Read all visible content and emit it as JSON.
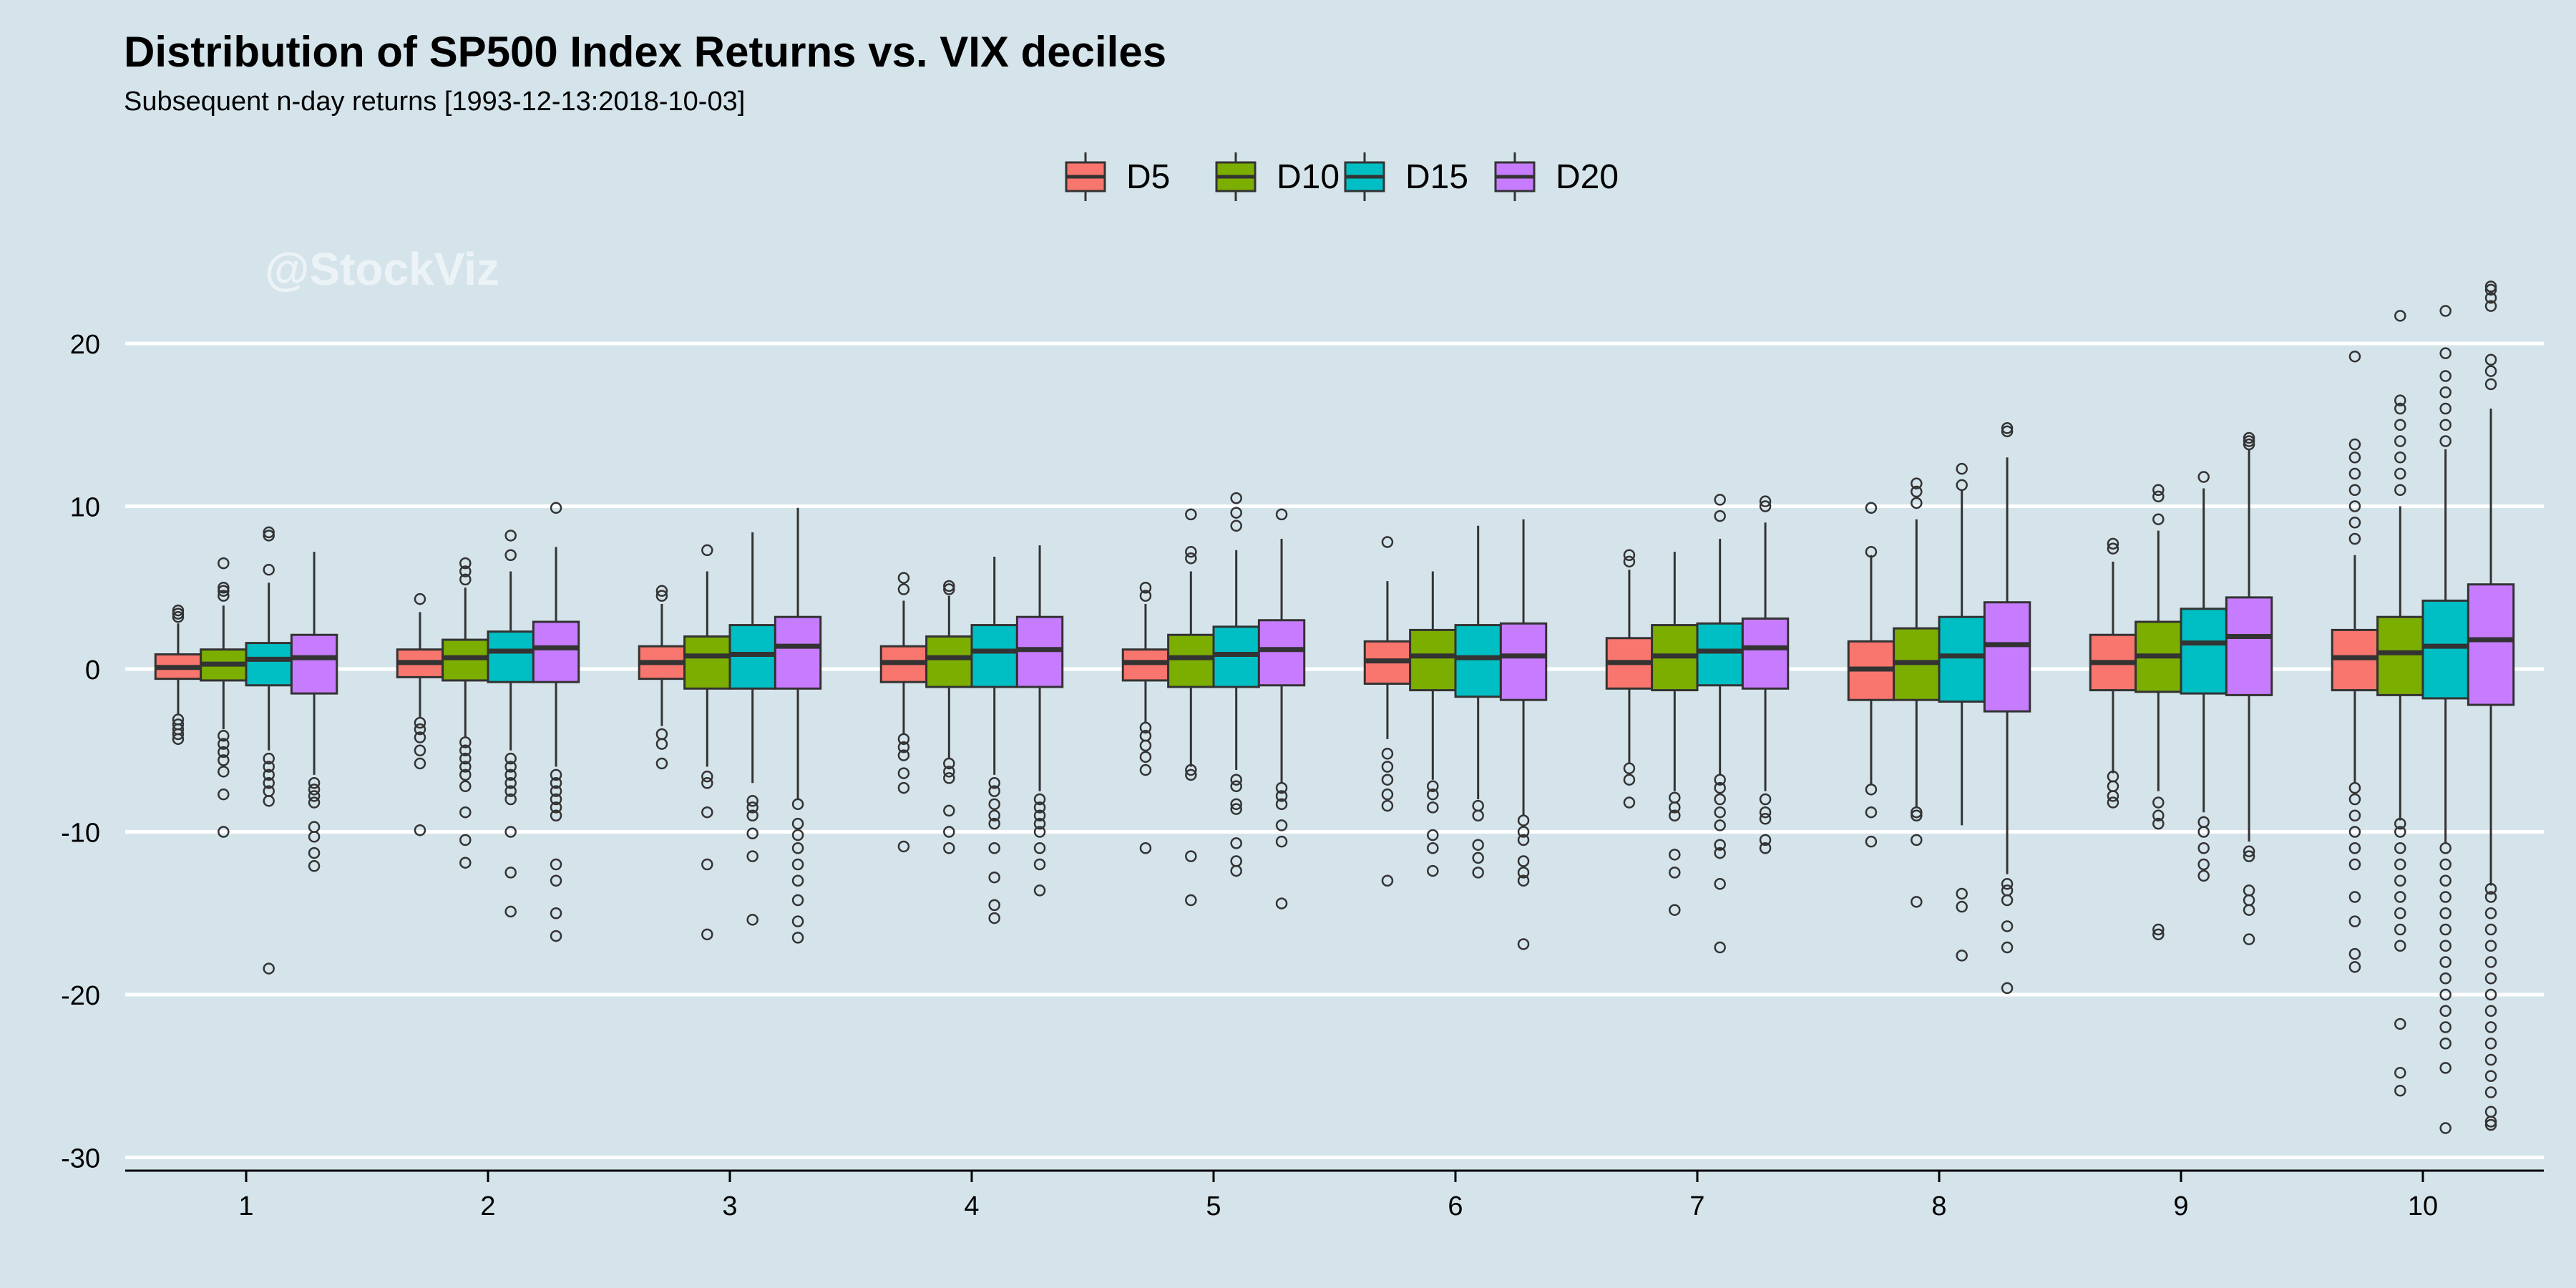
{
  "chart_data": {
    "type": "boxplot",
    "title": "Distribution of SP500 Index Returns vs. VIX deciles",
    "subtitle": "Subsequent n-day returns [1993-12-13:2018-10-03]",
    "watermark": "@StockViz",
    "xlabel": "",
    "ylabel": "",
    "ylim": [
      -30,
      24
    ],
    "yticks": [
      -30,
      -20,
      -10,
      0,
      10,
      20
    ],
    "categories": [
      "1",
      "2",
      "3",
      "4",
      "5",
      "6",
      "7",
      "8",
      "9",
      "10"
    ],
    "legend_position": "top",
    "background": "#d5e4eb",
    "series": [
      {
        "name": "D5",
        "color": "#f8766d",
        "boxes": [
          {
            "q1": -0.6,
            "median": 0.1,
            "q3": 0.9,
            "wlo": -2.8,
            "whi": 2.8,
            "outliers": [
              3.2,
              3.4,
              3.6,
              -3.1,
              -3.4,
              -3.7,
              -4.0,
              -4.3
            ]
          },
          {
            "q1": -0.5,
            "median": 0.4,
            "q3": 1.2,
            "wlo": -3.0,
            "whi": 3.5,
            "outliers": [
              4.3,
              -3.3,
              -3.7,
              -4.2,
              -5.0,
              -5.8,
              -9.9
            ]
          },
          {
            "q1": -0.6,
            "median": 0.4,
            "q3": 1.4,
            "wlo": -3.5,
            "whi": 4.0,
            "outliers": [
              4.5,
              4.8,
              -4.0,
              -4.6,
              -5.8
            ]
          },
          {
            "q1": -0.8,
            "median": 0.4,
            "q3": 1.4,
            "wlo": -4.0,
            "whi": 4.2,
            "outliers": [
              4.9,
              5.6,
              -4.3,
              -4.8,
              -5.3,
              -6.4,
              -7.3,
              -10.9
            ]
          },
          {
            "q1": -0.7,
            "median": 0.4,
            "q3": 1.2,
            "wlo": -3.3,
            "whi": 4.0,
            "outliers": [
              4.5,
              5.0,
              -3.6,
              -4.1,
              -4.7,
              -5.4,
              -6.2,
              -11.0
            ]
          },
          {
            "q1": -0.9,
            "median": 0.5,
            "q3": 1.7,
            "wlo": -4.3,
            "whi": 5.4,
            "outliers": [
              7.8,
              -5.2,
              -6.0,
              -6.8,
              -7.7,
              -8.4,
              -13.0
            ]
          },
          {
            "q1": -1.2,
            "median": 0.4,
            "q3": 1.9,
            "wlo": -5.8,
            "whi": 6.1,
            "outliers": [
              6.6,
              7.0,
              -6.1,
              -6.8,
              -8.2
            ]
          },
          {
            "q1": -1.9,
            "median": 0.0,
            "q3": 1.7,
            "wlo": -7.1,
            "whi": 7.0,
            "outliers": [
              7.2,
              9.9,
              -7.4,
              -8.8,
              -10.6
            ]
          },
          {
            "q1": -1.3,
            "median": 0.4,
            "q3": 2.1,
            "wlo": -6.4,
            "whi": 6.6,
            "outliers": [
              7.4,
              7.7,
              -6.6,
              -7.2,
              -7.8,
              -8.2
            ]
          },
          {
            "q1": -1.3,
            "median": 0.7,
            "q3": 2.4,
            "wlo": -7.0,
            "whi": 7.0,
            "outliers": [
              8,
              9,
              10,
              11,
              12,
              13,
              13.8,
              19.2,
              -7.3,
              -8,
              -9,
              -10,
              -11,
              -12,
              -14,
              -15.5,
              -17.5,
              -18.3
            ]
          }
        ]
      },
      {
        "name": "D10",
        "color": "#7cae00",
        "boxes": [
          {
            "q1": -0.7,
            "median": 0.3,
            "q3": 1.2,
            "wlo": -3.7,
            "whi": 3.9,
            "outliers": [
              4.5,
              4.8,
              5.0,
              6.5,
              -4.1,
              -4.6,
              -5.1,
              -5.6,
              -6.3,
              -7.7,
              -10.0
            ]
          },
          {
            "q1": -0.7,
            "median": 0.7,
            "q3": 1.8,
            "wlo": -4.2,
            "whi": 5.0,
            "outliers": [
              5.5,
              6.0,
              6.5,
              -4.5,
              -5.0,
              -5.5,
              -6.0,
              -6.5,
              -7.2,
              -8.8,
              -10.5,
              -11.9
            ]
          },
          {
            "q1": -1.2,
            "median": 0.8,
            "q3": 2.0,
            "wlo": -6.0,
            "whi": 6.0,
            "outliers": [
              7.3,
              -6.6,
              -7.0,
              -8.8,
              -12.0,
              -16.3
            ]
          },
          {
            "q1": -1.1,
            "median": 0.7,
            "q3": 2.0,
            "wlo": -5.5,
            "whi": 4.5,
            "outliers": [
              4.9,
              5.1,
              -5.8,
              -6.3,
              -6.7,
              -8.7,
              -10.0,
              -11.0
            ]
          },
          {
            "q1": -1.1,
            "median": 0.7,
            "q3": 2.1,
            "wlo": -6.0,
            "whi": 6.0,
            "outliers": [
              6.8,
              7.2,
              9.5,
              -6.2,
              -6.5,
              -11.5,
              -14.2
            ]
          },
          {
            "q1": -1.3,
            "median": 0.8,
            "q3": 2.4,
            "wlo": -6.8,
            "whi": 6.0,
            "outliers": [
              -7.2,
              -7.7,
              -8.5,
              -10.2,
              -11.0,
              -12.4
            ]
          },
          {
            "q1": -1.3,
            "median": 0.8,
            "q3": 2.7,
            "wlo": -7.5,
            "whi": 7.2,
            "outliers": [
              -7.9,
              -8.5,
              -9.0,
              -11.4,
              -12.5,
              -14.8
            ]
          },
          {
            "q1": -1.9,
            "median": 0.4,
            "q3": 2.5,
            "wlo": -8.5,
            "whi": 9.2,
            "outliers": [
              10.2,
              10.9,
              11.4,
              -8.8,
              -9.0,
              -10.5,
              -14.3
            ]
          },
          {
            "q1": -1.4,
            "median": 0.8,
            "q3": 2.9,
            "wlo": -7.5,
            "whi": 8.5,
            "outliers": [
              9.2,
              10.6,
              11.0,
              -8.2,
              -9.0,
              -9.5,
              -16.0,
              -16.3
            ]
          },
          {
            "q1": -1.6,
            "median": 1.0,
            "q3": 3.2,
            "wlo": -9.3,
            "whi": 10.0,
            "outliers": [
              11,
              12,
              13,
              14,
              15,
              16,
              16.5,
              21.7,
              -9.5,
              -10,
              -11,
              -12,
              -13,
              -14,
              -15,
              -16,
              -17,
              -21.8,
              -24.8,
              -25.9
            ]
          }
        ]
      },
      {
        "name": "D15",
        "color": "#00bfc4",
        "boxes": [
          {
            "q1": -1.0,
            "median": 0.6,
            "q3": 1.6,
            "wlo": -5.0,
            "whi": 5.3,
            "outliers": [
              6.1,
              8.2,
              8.4,
              -5.5,
              -6.0,
              -6.5,
              -7.0,
              -7.5,
              -8.1,
              -18.4
            ]
          },
          {
            "q1": -0.8,
            "median": 1.1,
            "q3": 2.3,
            "wlo": -5.0,
            "whi": 6.0,
            "outliers": [
              7.0,
              8.2,
              -5.5,
              -6.0,
              -6.5,
              -7.0,
              -7.5,
              -8.0,
              -10.0,
              -12.5,
              -14.9
            ]
          },
          {
            "q1": -1.2,
            "median": 0.9,
            "q3": 2.7,
            "wlo": -7.0,
            "whi": 8.4,
            "outliers": [
              -8.1,
              -8.5,
              -9.0,
              -10.1,
              -11.5,
              -15.4
            ]
          },
          {
            "q1": -1.1,
            "median": 1.1,
            "q3": 2.7,
            "wlo": -6.5,
            "whi": 6.9,
            "outliers": [
              -7.0,
              -7.5,
              -8.3,
              -9.0,
              -9.5,
              -11.0,
              -12.8,
              -14.5,
              -15.3
            ]
          },
          {
            "q1": -1.1,
            "median": 0.9,
            "q3": 2.6,
            "wlo": -6.2,
            "whi": 7.3,
            "outliers": [
              8.8,
              9.6,
              10.5,
              -6.8,
              -7.2,
              -8.3,
              -8.6,
              -10.7,
              -11.8,
              -12.4
            ]
          },
          {
            "q1": -1.7,
            "median": 0.7,
            "q3": 2.7,
            "wlo": -8.0,
            "whi": 8.8,
            "outliers": [
              -8.4,
              -9.0,
              -10.8,
              -11.6,
              -12.5
            ]
          },
          {
            "q1": -1.0,
            "median": 1.1,
            "q3": 2.8,
            "wlo": -6.5,
            "whi": 8.0,
            "outliers": [
              9.4,
              10.4,
              -6.8,
              -7.3,
              -8.0,
              -8.8,
              -9.6,
              -10.8,
              -11.3,
              -13.2,
              -17.1
            ]
          },
          {
            "q1": -2.0,
            "median": 0.8,
            "q3": 3.2,
            "wlo": -9.6,
            "whi": 11.0,
            "outliers": [
              11.3,
              12.3,
              -13.8,
              -14.6,
              -17.6
            ]
          },
          {
            "q1": -1.5,
            "median": 1.6,
            "q3": 3.7,
            "wlo": -8.8,
            "whi": 11.1,
            "outliers": [
              11.8,
              -9.4,
              -10.0,
              -11.0,
              -12.0,
              -12.7
            ]
          },
          {
            "q1": -1.8,
            "median": 1.4,
            "q3": 4.2,
            "wlo": -10.7,
            "whi": 13.5,
            "outliers": [
              14,
              15,
              16,
              17,
              18,
              19.4,
              22.0,
              -11,
              -12,
              -13,
              -14,
              -15,
              -16,
              -17,
              -18,
              -19,
              -20,
              -21,
              -22,
              -23,
              -24.5,
              -28.2
            ]
          }
        ]
      },
      {
        "name": "D20",
        "color": "#c77cff",
        "boxes": [
          {
            "q1": -1.5,
            "median": 0.7,
            "q3": 2.1,
            "wlo": -6.5,
            "whi": 7.2,
            "outliers": [
              -7.0,
              -7.4,
              -7.8,
              -8.2,
              -9.7,
              -10.3,
              -11.3,
              -12.1
            ]
          },
          {
            "q1": -0.8,
            "median": 1.3,
            "q3": 2.9,
            "wlo": -6.0,
            "whi": 7.5,
            "outliers": [
              9.9,
              -6.5,
              -7.0,
              -7.5,
              -8.0,
              -8.5,
              -9.0,
              -12.0,
              -13.0,
              -15.0,
              -16.4
            ]
          },
          {
            "q1": -1.2,
            "median": 1.4,
            "q3": 3.2,
            "wlo": -8.0,
            "whi": 9.9,
            "outliers": [
              -8.3,
              -9.5,
              -10.2,
              -11.0,
              -12.0,
              -13.0,
              -14.2,
              -15.5,
              -16.5
            ]
          },
          {
            "q1": -1.1,
            "median": 1.2,
            "q3": 3.2,
            "wlo": -7.5,
            "whi": 7.6,
            "outliers": [
              -8.0,
              -8.5,
              -9.0,
              -9.5,
              -10.0,
              -11.0,
              -12.0,
              -13.6
            ]
          },
          {
            "q1": -1.0,
            "median": 1.2,
            "q3": 3.0,
            "wlo": -7.0,
            "whi": 8.0,
            "outliers": [
              9.5,
              -7.3,
              -7.8,
              -8.3,
              -9.6,
              -10.6,
              -14.4
            ]
          },
          {
            "q1": -1.9,
            "median": 0.8,
            "q3": 2.8,
            "wlo": -9.0,
            "whi": 9.2,
            "outliers": [
              -9.3,
              -10.0,
              -10.5,
              -11.8,
              -12.5,
              -13.0,
              -16.9
            ]
          },
          {
            "q1": -1.2,
            "median": 1.3,
            "q3": 3.1,
            "wlo": -7.5,
            "whi": 9.0,
            "outliers": [
              10.0,
              10.3,
              -8.0,
              -8.8,
              -9.2,
              -10.5,
              -11.0
            ]
          },
          {
            "q1": -2.6,
            "median": 1.5,
            "q3": 4.1,
            "wlo": -12.6,
            "whi": 13.0,
            "outliers": [
              14.6,
              14.8,
              -13.2,
              -13.6,
              -14.2,
              -15.8,
              -17.1,
              -19.6
            ]
          },
          {
            "q1": -1.6,
            "median": 2.0,
            "q3": 4.4,
            "wlo": -10.6,
            "whi": 13.5,
            "outliers": [
              13.8,
              14.0,
              14.2,
              -11.2,
              -11.5,
              -13.6,
              -14.2,
              -14.8,
              -16.6
            ]
          },
          {
            "q1": -2.2,
            "median": 1.8,
            "q3": 5.2,
            "wlo": -13.3,
            "whi": 16.0,
            "outliers": [
              17.5,
              18.3,
              19.0,
              22.3,
              22.8,
              23.3,
              23.5,
              -13.5,
              -14,
              -15,
              -16,
              -17,
              -18,
              -19,
              -20,
              -21,
              -22,
              -23,
              -24,
              -25,
              -26,
              -27.2,
              -27.8,
              -28.0
            ]
          }
        ]
      }
    ]
  }
}
